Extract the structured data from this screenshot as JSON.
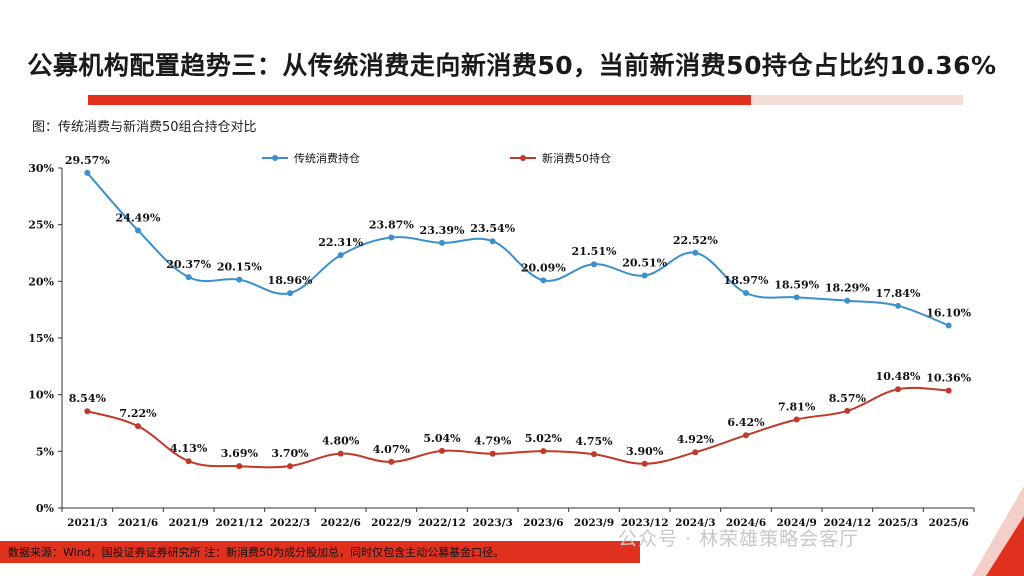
{
  "slide": {
    "title": "公募机构配置趋势三：从传统消费走向新消费50，当前新消费50持仓占比约10.36%",
    "figure_caption": "图：传统消费与新消费50组合持仓对比",
    "source_note": "数据来源：Wind，国投证券证券研究所   注：新消费50为成分股加总，同时仅包含主动公募基金口径。",
    "watermark": "公众号 · 林荣雄策略会客厅"
  },
  "colors": {
    "accent_red": "#e0301e",
    "traditional_line": "#3b8fcb",
    "new_consumption_line": "#c0392b"
  },
  "chart_data": {
    "type": "line",
    "title": "",
    "xlabel": "",
    "ylabel": "",
    "ylim": [
      0,
      30
    ],
    "yticks": [
      0,
      5,
      10,
      15,
      20,
      25,
      30
    ],
    "ytick_labels": [
      "0%",
      "5%",
      "10%",
      "15%",
      "20%",
      "25%",
      "30%"
    ],
    "legend_position": "top",
    "grid": false,
    "categories": [
      "2021/3",
      "2021/6",
      "2021/9",
      "2021/12",
      "2022/3",
      "2022/6",
      "2022/9",
      "2022/12",
      "2023/3",
      "2023/6",
      "2023/9",
      "2023/12",
      "2024/3",
      "2024/6",
      "2024/9",
      "2024/12",
      "2025/3",
      "2025/6"
    ],
    "series": [
      {
        "name": "传统消费持仓",
        "values": [
          29.57,
          24.49,
          20.37,
          20.15,
          18.96,
          22.31,
          23.87,
          23.39,
          23.54,
          20.09,
          21.51,
          20.51,
          22.52,
          18.97,
          18.59,
          18.29,
          17.84,
          16.1
        ],
        "labels": [
          "29.57%",
          "24.49%",
          "20.37%",
          "20.15%",
          "18.96%",
          "22.31%",
          "23.87%",
          "23.39%",
          "23.54%",
          "20.09%",
          "21.51%",
          "20.51%",
          "22.52%",
          "18.97%",
          "18.59%",
          "18.29%",
          "17.84%",
          "16.10%"
        ]
      },
      {
        "name": "新消费50持仓",
        "values": [
          8.54,
          7.22,
          4.13,
          3.69,
          3.7,
          4.8,
          4.07,
          5.04,
          4.79,
          5.02,
          4.75,
          3.9,
          4.92,
          6.42,
          7.81,
          8.57,
          10.48,
          10.36
        ],
        "labels": [
          "8.54%",
          "7.22%",
          "4.13%",
          "3.69%",
          "3.70%",
          "4.80%",
          "4.07%",
          "5.04%",
          "4.79%",
          "5.02%",
          "4.75%",
          "3.90%",
          "4.92%",
          "6.42%",
          "7.81%",
          "8.57%",
          "10.48%",
          "10.36%"
        ]
      }
    ]
  }
}
